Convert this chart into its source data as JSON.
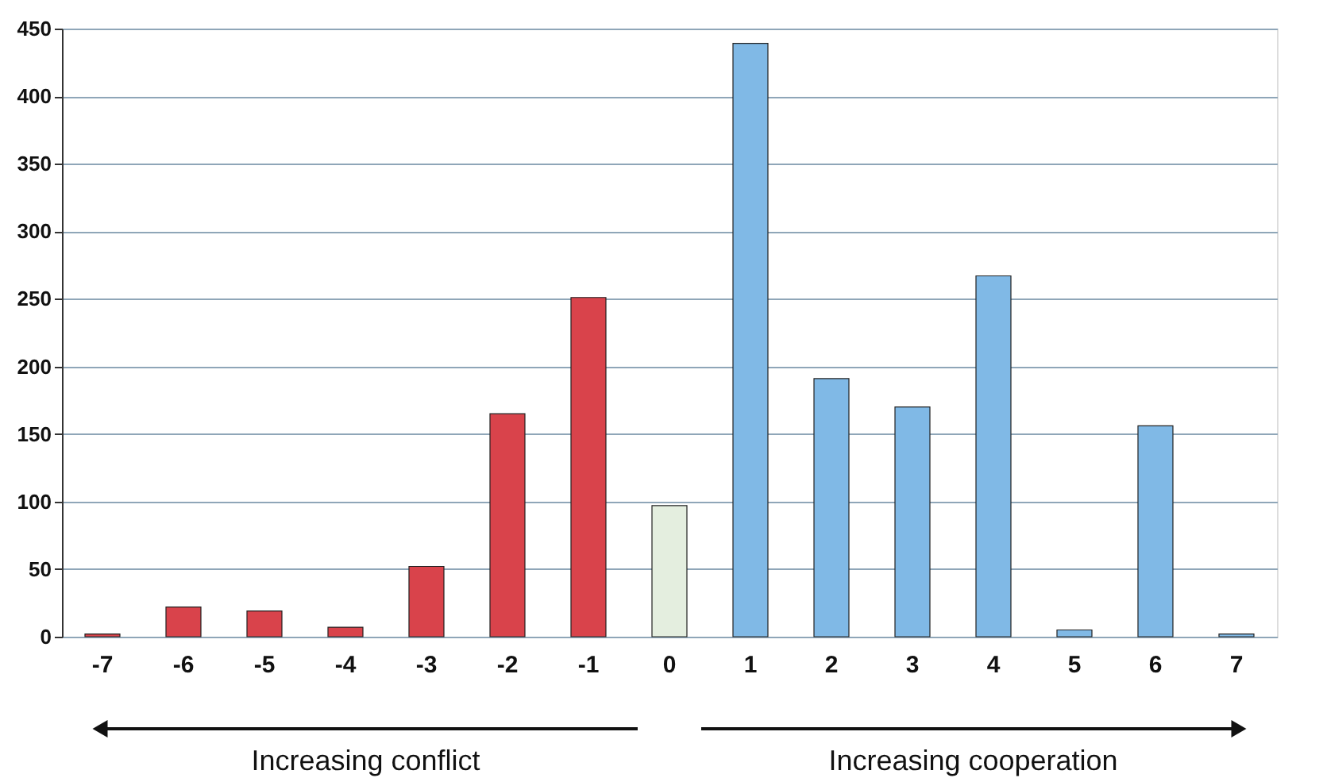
{
  "chart_data": {
    "type": "bar",
    "categories": [
      "-7",
      "-6",
      "-5",
      "-4",
      "-3",
      "-2",
      "-1",
      "0",
      "1",
      "2",
      "3",
      "4",
      "5",
      "6",
      "7"
    ],
    "values": [
      2,
      22,
      19,
      7,
      52,
      165,
      251,
      97,
      439,
      191,
      170,
      267,
      5,
      156,
      2
    ],
    "colors": [
      "#d9434b",
      "#d9434b",
      "#d9434b",
      "#d9434b",
      "#d9434b",
      "#d9434b",
      "#d9434b",
      "#e4eedf",
      "#80b9e6",
      "#80b9e6",
      "#80b9e6",
      "#80b9e6",
      "#80b9e6",
      "#80b9e6",
      "#80b9e6"
    ],
    "ylim": [
      0,
      450
    ],
    "yticks": [
      0,
      50,
      100,
      150,
      200,
      250,
      300,
      350,
      400,
      450
    ],
    "grid": "y",
    "annotations": [
      "Increasing conflict",
      "Increasing cooperation"
    ]
  }
}
